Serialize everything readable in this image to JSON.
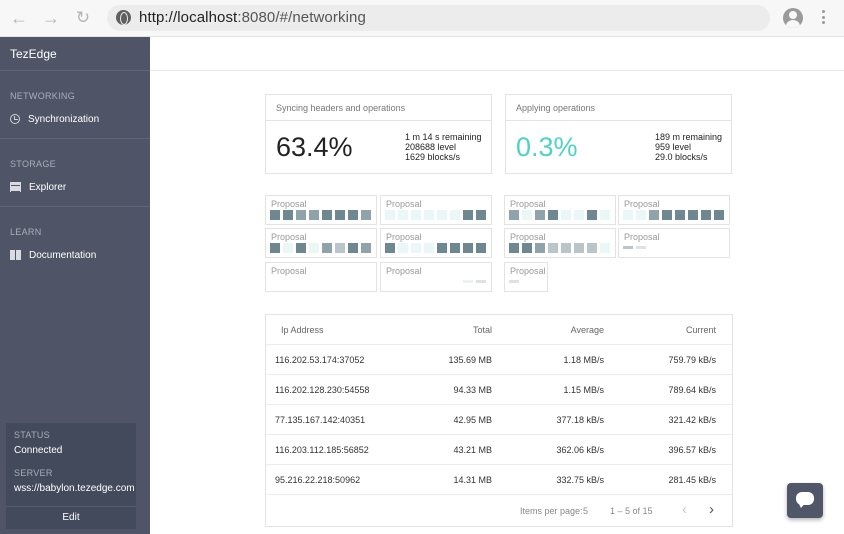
{
  "browser": {
    "url_host": "http://localhost",
    "url_rest": ":8080/#/networking"
  },
  "sidebar": {
    "brand": "TezEdge",
    "sections": [
      {
        "title": "NETWORKING",
        "item": "Synchronization",
        "icon": "history-icon"
      },
      {
        "title": "STORAGE",
        "item": "Explorer",
        "icon": "storage-icon"
      },
      {
        "title": "LEARN",
        "item": "Documentation",
        "icon": "book-icon"
      }
    ],
    "status": {
      "status_label": "STATUS",
      "status_value": "Connected",
      "server_label": "SERVER",
      "server_value": "wss://babylon.tezedge.com",
      "edit_label": "Edit"
    }
  },
  "syncing": {
    "title": "Syncing headers and operations",
    "percent": "63.4%",
    "remaining": "1 m 14 s remaining",
    "level": "208688 level",
    "rate": "1629 blocks/s"
  },
  "applying": {
    "title": "Applying operations",
    "percent": "0.3%",
    "remaining": "189 m remaining",
    "level": "959 level",
    "rate": "29.0 blocks/s"
  },
  "proposal_label": "Proposal",
  "colors": {
    "sidebar": "#4f5566",
    "teal": "#4fd1c5",
    "square_dark": "#6f8790",
    "square_mid": "#8fa3aa",
    "square_light": "#b9c5c9",
    "square_faint": "#eaf7f7"
  },
  "peers": {
    "headers": [
      "Ip Address",
      "Total",
      "Average",
      "Current"
    ],
    "rows": [
      [
        "116.202.53.174:37052",
        "135.69 MB",
        "1.18 MB/s",
        "759.79 kB/s"
      ],
      [
        "116.202.128.230:54558",
        "94.33 MB",
        "1.15 MB/s",
        "789.64 kB/s"
      ],
      [
        "77.135.167.142:40351",
        "42.95 MB",
        "377.18 kB/s",
        "321.42 kB/s"
      ],
      [
        "116.203.112.185:56852",
        "43.21 MB",
        "362.06 kB/s",
        "396.57 kB/s"
      ],
      [
        "95.216.22.218:50962",
        "14.31 MB",
        "332.75 kB/s",
        "281.45 kB/s"
      ]
    ],
    "items_per_page_label": "Items per page:",
    "items_per_page": "5",
    "range": "1 – 5 of 15"
  }
}
